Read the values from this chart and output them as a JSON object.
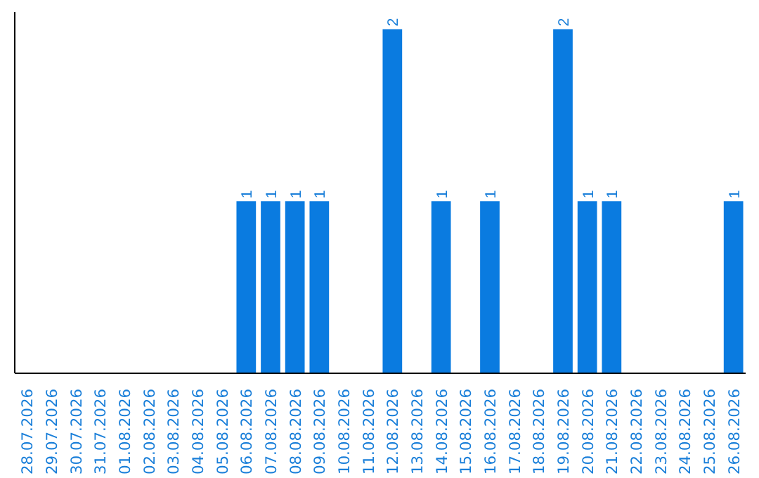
{
  "chart_data": {
    "type": "bar",
    "categories": [
      "28.07.2026",
      "29.07.2026",
      "30.07.2026",
      "31.07.2026",
      "01.08.2026",
      "02.08.2026",
      "03.08.2026",
      "04.08.2026",
      "05.08.2026",
      "06.08.2026",
      "07.08.2026",
      "08.08.2026",
      "09.08.2026",
      "10.08.2026",
      "11.08.2026",
      "12.08.2026",
      "13.08.2026",
      "14.08.2026",
      "15.08.2026",
      "16.08.2026",
      "17.08.2026",
      "18.08.2026",
      "19.08.2026",
      "20.08.2026",
      "21.08.2026",
      "22.08.2026",
      "23.08.2026",
      "24.08.2026",
      "25.08.2026",
      "26.08.2026"
    ],
    "values": [
      0,
      0,
      0,
      0,
      0,
      0,
      0,
      0,
      0,
      1,
      1,
      1,
      1,
      0,
      0,
      2,
      0,
      1,
      0,
      1,
      0,
      0,
      2,
      1,
      1,
      0,
      0,
      0,
      0,
      1
    ],
    "value_labels": [
      null,
      null,
      null,
      null,
      null,
      null,
      null,
      null,
      null,
      "1",
      "1",
      "1",
      "1",
      null,
      null,
      "2",
      null,
      "1",
      null,
      "1",
      null,
      null,
      "2",
      "1",
      "1",
      null,
      null,
      null,
      null,
      "1"
    ],
    "color": "#0a7be0",
    "grid": false,
    "tick_labels": "x"
  }
}
